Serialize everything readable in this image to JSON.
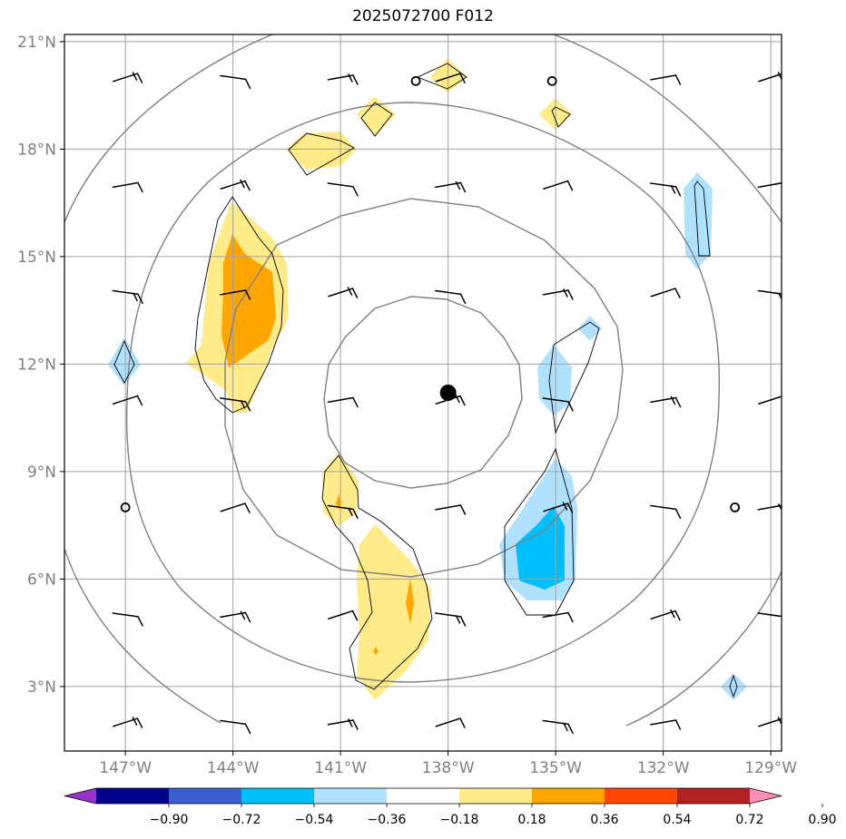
{
  "chart_data": {
    "type": "map",
    "title": "2025072700 F012",
    "x_tick_labels": [
      "147°W",
      "144°W",
      "141°W",
      "138°W",
      "135°W",
      "132°W",
      "129°W"
    ],
    "x_tick_values": [
      -147,
      -144,
      -141,
      -138,
      -135,
      -132,
      -129
    ],
    "y_tick_labels": [
      "3°N",
      "6°N",
      "9°N",
      "12°N",
      "15°N",
      "18°N",
      "21°N"
    ],
    "y_tick_values": [
      3,
      6,
      9,
      12,
      15,
      18,
      21
    ],
    "lon_range": [
      -148.7,
      -128.7
    ],
    "lat_range": [
      1.2,
      21.2
    ],
    "grid": true,
    "center_marker": {
      "lon": -138.0,
      "lat": 11.2
    },
    "range_rings_deg": [
      3.0,
      5.5,
      8.3,
      11.0
    ],
    "colorbar": {
      "extend": "both",
      "ticks": [
        "−0.90",
        "−0.72",
        "−0.54",
        "−0.36",
        "−0.18",
        "0.18",
        "0.36",
        "0.54",
        "0.72",
        "0.90"
      ],
      "colors": [
        "#9932cc",
        "#00008b",
        "#3a5fcd",
        "#00bfff",
        "#b0e2ff",
        "#ffffff",
        "#ffeb8a",
        "#ffa500",
        "#ff4500",
        "#b22222",
        "#ff8fb8"
      ]
    },
    "shaded_regions": [
      {
        "level": 0.18,
        "color": "#ffeb8a"
      },
      {
        "level": 0.36,
        "color": "#ffa500"
      },
      {
        "level": -0.18,
        "color": "#b0e2ff"
      },
      {
        "level": -0.36,
        "color": "#00bfff"
      }
    ],
    "wind_barb_grid": {
      "lons": [
        -147,
        -144,
        -141,
        -138,
        -135,
        -132,
        -129
      ],
      "lats": [
        2,
        5,
        8,
        11,
        14,
        17,
        20
      ]
    },
    "calm_points": [
      {
        "lon": -138.9,
        "lat": 19.9
      },
      {
        "lon": -135.1,
        "lat": 19.9
      },
      {
        "lon": -147.0,
        "lat": 8.0
      },
      {
        "lon": -130.0,
        "lat": 8.0
      }
    ]
  }
}
